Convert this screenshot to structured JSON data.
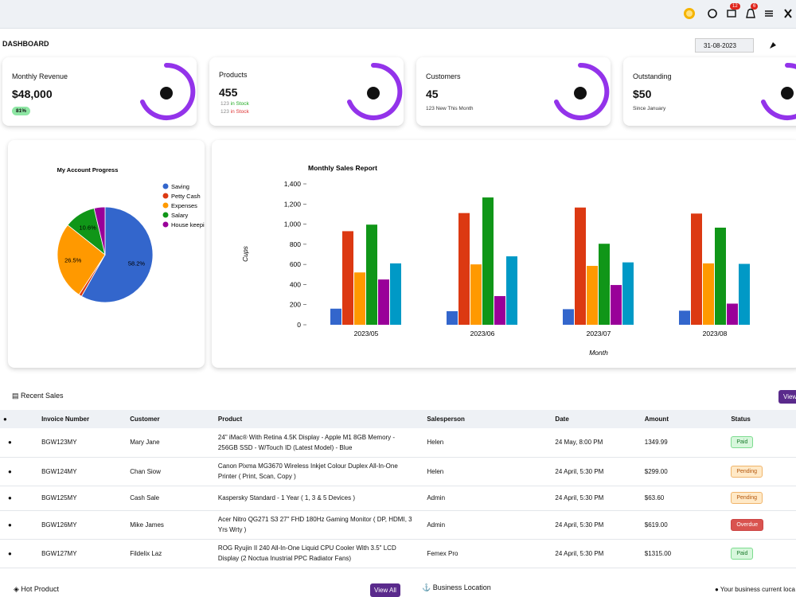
{
  "header": {
    "mail_count": "12",
    "bell_count": "6"
  },
  "dashboard": {
    "title": "DASHBOARD",
    "date": "31-08-2023"
  },
  "cards": [
    {
      "title": "Monthly Revenue",
      "value": "$48,000",
      "badge": "81%"
    },
    {
      "title": "Products",
      "value": "455",
      "lines": [
        {
          "count": "123",
          "text": "in Stock"
        },
        {
          "count": "123",
          "text": "in Stock"
        }
      ]
    },
    {
      "title": "Customers",
      "value": "45",
      "note": "123 New This Month"
    },
    {
      "title": "Outstanding",
      "value": "$50",
      "note": "Since January"
    }
  ],
  "chart_data": [
    {
      "type": "pie",
      "title": "My Account Progress",
      "categories": [
        "Saving",
        "Petty Cash",
        "Expenses",
        "Salary",
        "House keepi"
      ],
      "values": [
        58.2,
        1.0,
        26.5,
        10.6,
        3.7
      ],
      "value_labels": [
        "58.2%",
        null,
        "26.5%",
        "10.6%",
        null
      ],
      "colors": [
        "#3366cc",
        "#dc3912",
        "#ff9900",
        "#109618",
        "#990099"
      ]
    },
    {
      "type": "bar",
      "title": "Monthly Sales Report",
      "y_label": "Cups",
      "x_label": "Month",
      "categories": [
        "2023/05",
        "2023/06",
        "2023/07",
        "2023/08"
      ],
      "series": [
        {
          "color": "#3366cc",
          "values": [
            160,
            135,
            155,
            140
          ]
        },
        {
          "color": "#dc3912",
          "values": [
            930,
            1110,
            1165,
            1105
          ]
        },
        {
          "color": "#ff9900",
          "values": [
            520,
            600,
            585,
            610
          ]
        },
        {
          "color": "#109618",
          "values": [
            995,
            1265,
            805,
            965
          ]
        },
        {
          "color": "#990099",
          "values": [
            450,
            285,
            395,
            210
          ]
        },
        {
          "color": "#0099c6",
          "values": [
            610,
            680,
            620,
            605
          ]
        }
      ],
      "ylim": [
        0,
        1400
      ],
      "yticks": [
        0,
        200,
        400,
        600,
        800,
        {
          "value": 1000,
          "label": "1,000"
        },
        {
          "value": 1200,
          "label": "1,200"
        },
        {
          "value": 1400,
          "label": "1,400"
        }
      ]
    }
  ],
  "sales": {
    "title": "Recent Sales",
    "button": "View",
    "headers": [
      "Invoice Number",
      "Customer",
      "Product",
      "Salesperson",
      "Date",
      "Amount",
      "Status"
    ],
    "rows": [
      [
        "BGW123MY",
        "Mary Jane",
        "24\" iMac® With Retina 4.5K Display - Apple M1 8GB Memory - 256GB SSD - W/Touch ID (Latest Model) - Blue",
        "Helen",
        "24 May, 8:00 PM",
        "1349.99",
        "Paid"
      ],
      [
        "BGW124MY",
        "Chan Siow",
        "Canon Pixma MG3670 Wireless Inkjet Colour Duplex All-In-One Printer ( Print, Scan, Copy )",
        "Helen",
        "24 April, 5:30 PM",
        "$299.00",
        "Pending"
      ],
      [
        "BGW125MY",
        "Cash Sale",
        "Kaspersky Standard - 1 Year ( 1, 3 & 5 Devices )",
        "Admin",
        "24 April, 5:30 PM",
        "$63.60",
        "Pending"
      ],
      [
        "BGW126MY",
        "Mike James",
        "Acer Nitro QG271 S3 27\" FHD 180Hz Gaming Monitor ( DP, HDMI, 3 Yrs Wrty )",
        "Admin",
        "24 April, 5:30 PM",
        "$619.00",
        "Overdue"
      ],
      [
        "BGW127MY",
        "Fildelix Laz",
        "ROG Ryujin II 240 All-In-One Liquid CPU Cooler With 3.5\" LCD Display (2 Noctua Inustrial PPC Radiator Fans)",
        "Femex Pro",
        "24 April, 5:30 PM",
        "$1315.00",
        "Paid"
      ]
    ]
  },
  "bottom": {
    "hot_product": "Hot Product",
    "view_all": "View All",
    "business_location": "Business Location",
    "location_note": "Your business current loca"
  }
}
